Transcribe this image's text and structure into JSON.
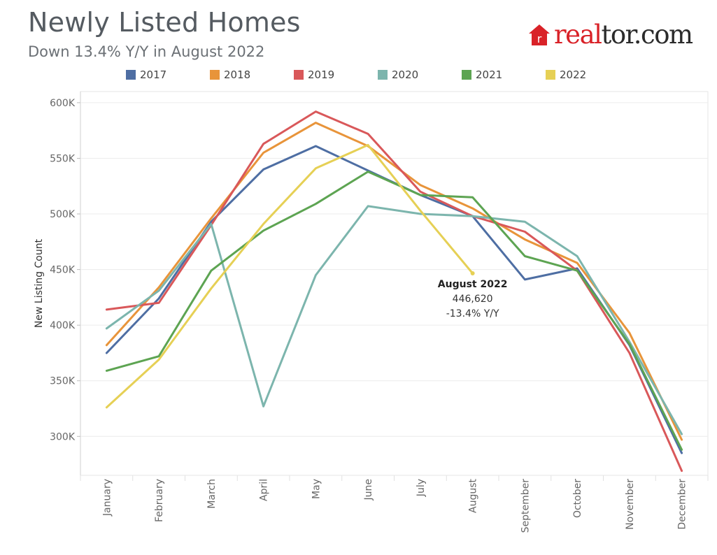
{
  "header": {
    "title": "Newly Listed Homes",
    "subtitle": "Down 13.4% Y/Y in August 2022"
  },
  "logo": {
    "text_real": "real",
    "text_tor": "tor.com",
    "brand_color": "#d92228",
    "icon": "house-r-icon"
  },
  "chart_data": {
    "type": "line",
    "title": "Newly Listed Homes",
    "subtitle": "Down 13.4% Y/Y in August 2022",
    "xlabel": "",
    "ylabel": "New Listing Count",
    "ylim": [
      265000,
      610000
    ],
    "yticks": [
      300000,
      350000,
      400000,
      450000,
      500000,
      550000,
      600000
    ],
    "ytick_labels": [
      "300K",
      "350K",
      "400K",
      "450K",
      "500K",
      "550K",
      "600K"
    ],
    "categories": [
      "January",
      "February",
      "March",
      "April",
      "May",
      "June",
      "July",
      "August",
      "September",
      "October",
      "November",
      "December"
    ],
    "grid": "horizontal",
    "legend_position": "top",
    "series": [
      {
        "name": "2017",
        "color": "#4e6ea3",
        "values": [
          375000,
          424000,
          493000,
          540000,
          561000,
          539000,
          517000,
          498000,
          441000,
          451000,
          382000,
          285000
        ]
      },
      {
        "name": "2018",
        "color": "#e8943a",
        "values": [
          382000,
          434000,
          496000,
          555000,
          582000,
          561000,
          526000,
          505000,
          477000,
          456000,
          393000,
          297000
        ]
      },
      {
        "name": "2019",
        "color": "#d9585a",
        "values": [
          414000,
          420000,
          490000,
          563000,
          592000,
          572000,
          520000,
          498000,
          484000,
          449000,
          375000,
          269000
        ]
      },
      {
        "name": "2020",
        "color": "#7cb5ad",
        "values": [
          397000,
          431000,
          491000,
          327000,
          445000,
          507000,
          500000,
          498000,
          493000,
          462000,
          385000,
          302000
        ]
      },
      {
        "name": "2021",
        "color": "#5da452",
        "values": [
          359000,
          372000,
          449000,
          485000,
          509000,
          538000,
          517000,
          515000,
          462000,
          449000,
          383000,
          288000
        ]
      },
      {
        "name": "2022",
        "color": "#e6d055",
        "values": [
          326000,
          369000,
          433000,
          491000,
          541000,
          562000,
          503000,
          446620,
          null,
          null,
          null,
          null
        ]
      }
    ],
    "annotation": {
      "category": "August",
      "value": 446620,
      "lines": [
        "August 2022",
        "446,620",
        "-13.4% Y/Y"
      ]
    }
  }
}
